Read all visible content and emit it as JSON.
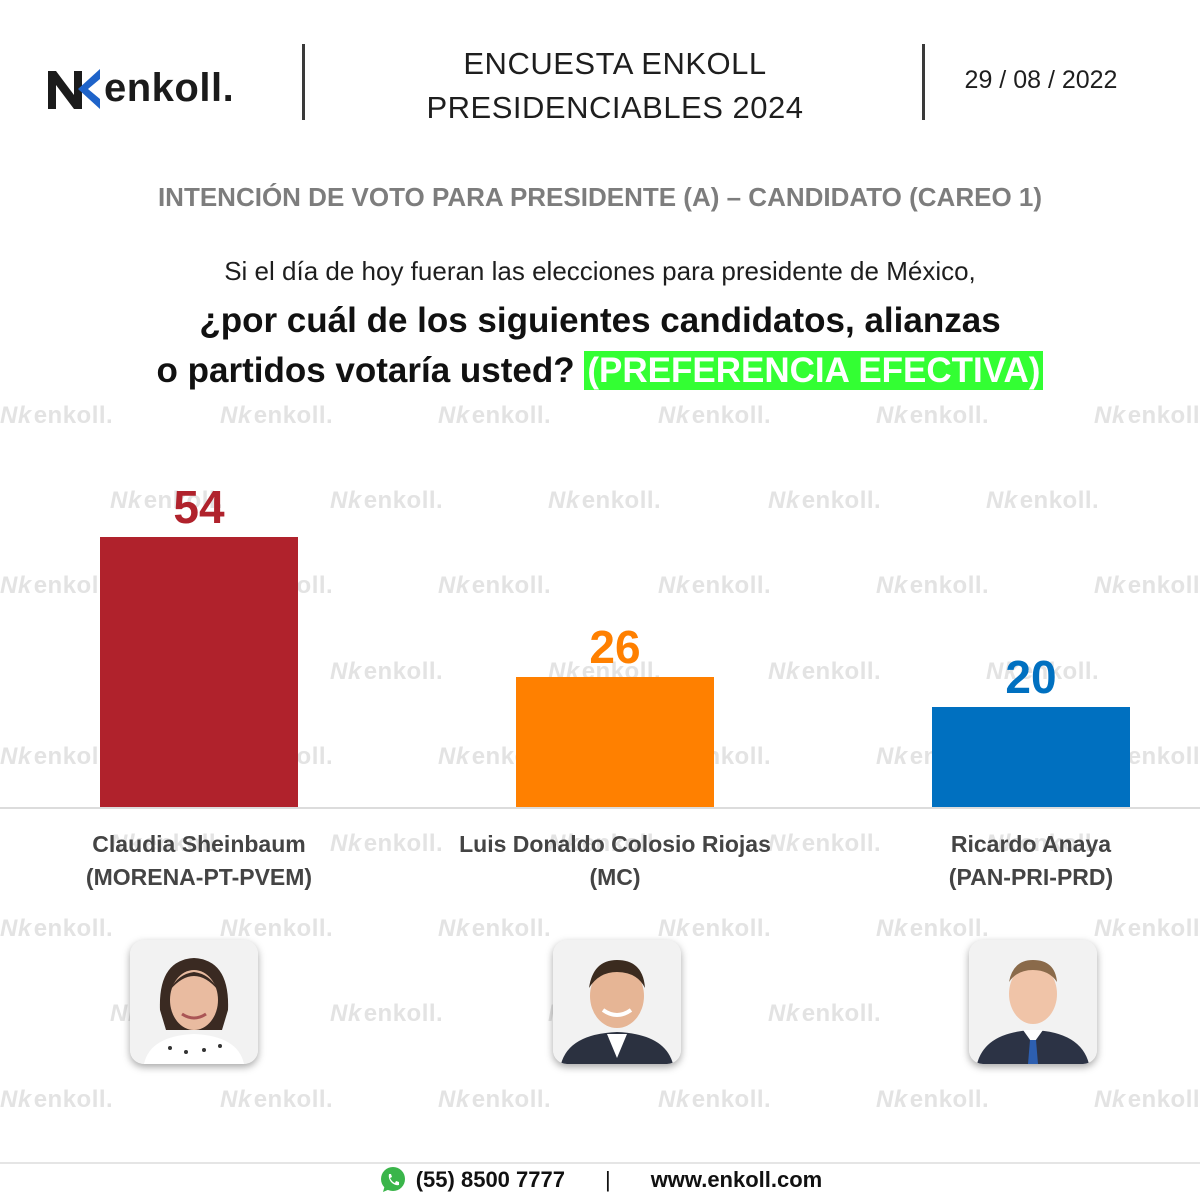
{
  "header": {
    "brand": "enkoll.",
    "title_line1": "ENCUESTA ENKOLL",
    "title_line2": "PRESIDENCIABLES 2024",
    "date": "29 / 08 / 2022"
  },
  "subtitle": "INTENCIÓN DE VOTO PARA PRESIDENTE (A) – CANDIDATO (CAREO 1)",
  "question": {
    "line1": "Si el día de hoy fueran las elecciones para presidente de México,",
    "line2": "¿por cuál de los siguientes candidatos, alianzas",
    "line3": "o partidos votaría usted?",
    "highlight": "(PREFERENCIA EFECTIVA)"
  },
  "watermark_text": "enkoll.",
  "chart_data": {
    "type": "bar",
    "categories": [
      "Claudia Sheinbaum (MORENA-PT-PVEM)",
      "Luis Donaldo Colosio Riojas (MC)",
      "Ricardo Anaya (PAN-PRI-PRD)"
    ],
    "values": [
      54,
      26,
      20
    ],
    "colors": [
      "#b0222c",
      "#ff8000",
      "#0070c0"
    ],
    "ylim": [
      0,
      60
    ],
    "grid": false,
    "legend": "none"
  },
  "candidates": [
    {
      "name": "Claudia Sheinbaum",
      "party": "(MORENA-PT-PVEM)",
      "photo_icon": "portrait-woman-icon"
    },
    {
      "name": "Luis Donaldo Colosio Riojas",
      "party": "(MC)",
      "photo_icon": "portrait-man-icon"
    },
    {
      "name": "Ricardo Anaya",
      "party": "(PAN-PRI-PRD)",
      "photo_icon": "portrait-man-icon"
    }
  ],
  "footer": {
    "icon": "whatsapp-icon",
    "phone": "(55) 8500 7777",
    "separator": "|",
    "website": "www.enkoll.com"
  }
}
